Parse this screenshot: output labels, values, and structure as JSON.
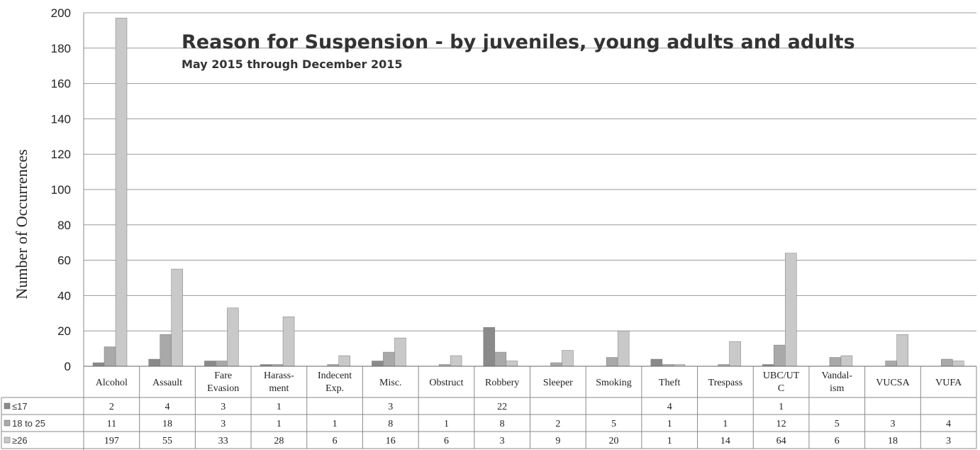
{
  "chart_data": {
    "type": "bar",
    "title": "Reason for Suspension - by juveniles, young adults and adults",
    "subtitle": "May 2015 through December 2015",
    "ylabel": "Number of Occurrences",
    "ylim": [
      0,
      200
    ],
    "yticks": [
      0,
      20,
      40,
      60,
      80,
      100,
      120,
      140,
      160,
      180,
      200
    ],
    "grid": true,
    "legend_placement": "data table rows",
    "categories": [
      "Alcohol",
      "Assault",
      "Fare Evasion",
      "Harass- ment",
      "Indecent Exp.",
      "Misc.",
      "Obstruct",
      "Robbery",
      "Sleeper",
      "Smoking",
      "Theft",
      "Trespass",
      "UBC/UT C",
      "Vandal- ism",
      "VUCSA",
      "VUFA"
    ],
    "series": [
      {
        "name": "≤17",
        "color": "#8a8a8a",
        "values": [
          2,
          4,
          3,
          1,
          null,
          3,
          null,
          22,
          null,
          null,
          4,
          null,
          1,
          null,
          null,
          null
        ]
      },
      {
        "name": "18 to 25",
        "color": "#a9a9a9",
        "values": [
          11,
          18,
          3,
          1,
          1,
          8,
          1,
          8,
          2,
          5,
          1,
          1,
          12,
          5,
          3,
          4
        ]
      },
      {
        "name": "≥26",
        "color": "#c9c9c9",
        "values": [
          197,
          55,
          33,
          28,
          6,
          16,
          6,
          3,
          9,
          20,
          1,
          14,
          64,
          6,
          18,
          3
        ]
      }
    ]
  }
}
